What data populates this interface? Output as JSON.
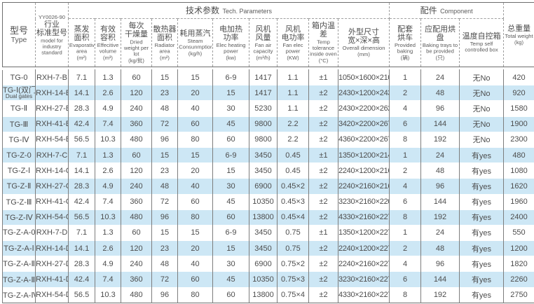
{
  "colors": {
    "row_highlight": "#cde7f5",
    "grid_border": "#6e6e6e",
    "text": "#4d4d4d"
  },
  "header": {
    "groups": {
      "tech_zh": "技术参数",
      "tech_en": "Tech. Parameters",
      "component_zh": "配件",
      "component_en": "Component"
    },
    "columns": [
      {
        "zh": "型号",
        "en": "Type"
      },
      {
        "std": "YY0026-90",
        "zh": "行业",
        "zh2": "标准型号",
        "en": "model for industry standard"
      },
      {
        "zh": "蒸发",
        "zh2": "面积",
        "en": "Evaporative area",
        "unit": "(m²)"
      },
      {
        "zh": "有效",
        "zh2": "容积",
        "en": "Effecitive volume",
        "unit": "(m³)"
      },
      {
        "zh": "每次",
        "zh2": "干燥量",
        "en": "Dried weight per lot",
        "unit": "(kg/批)"
      },
      {
        "zh": "散热器",
        "zh2": "面积",
        "en": "Radiator area",
        "unit": "(m²)"
      },
      {
        "zh": "耗用蒸汽",
        "en": "Steam Consunmption",
        "unit": "(kg/h)"
      },
      {
        "zh": "电加热",
        "zh2": "功率",
        "en": "Elec heating power",
        "unit": "(kw)"
      },
      {
        "zh": "风机",
        "zh2": "风量",
        "en": "Fan air capacity",
        "unit": "(m³/h)"
      },
      {
        "zh": "风机",
        "zh2": "电功率",
        "en": "Fan elec power",
        "unit": "(KW)"
      },
      {
        "zh": "箱内温差",
        "en": "Temp tolerance inside oven",
        "unit": "(°C)"
      },
      {
        "zh": "外型尺寸",
        "zh2": "宽×深×高",
        "en": "Overall dimension",
        "unit": "(mm)"
      },
      {
        "zh": "配套",
        "zh2": "烘车",
        "en": "Provided baking",
        "unit": "(辆)"
      },
      {
        "zh": "应配用烘盘",
        "en": "Baking trays to be provided",
        "unit": "(只)"
      },
      {
        "zh": "温度自控箱",
        "en": "Temp self controlled box",
        "unit": ""
      },
      {
        "zh": "总重量",
        "en": "Total weight",
        "unit": "(kg)"
      }
    ]
  },
  "row_keys": [
    "type",
    "model",
    "evap",
    "vol",
    "dried",
    "rad",
    "steam",
    "heat",
    "air",
    "fan",
    "tol",
    "dim",
    "cars",
    "trays",
    "box",
    "weight"
  ],
  "rows": [
    {
      "type": "TG-0",
      "type_sub": "",
      "model": "RXH-7-B",
      "evap": "7.1",
      "vol": "1.3",
      "dried": "60",
      "rad": "15",
      "steam": "15",
      "heat": "6-9",
      "air": "1417",
      "fan": "1.1",
      "tol": "±1",
      "dim": "1050×1600×2100",
      "cars": "1",
      "trays": "24",
      "box": "无No",
      "weight": "420"
    },
    {
      "type": "TG-Ⅰ(双门)",
      "type_sub": "Dual gates",
      "model": "RXH-14-B",
      "evap": "14.1",
      "vol": "2.6",
      "dried": "120",
      "rad": "23",
      "steam": "20",
      "heat": "15",
      "air": "1417",
      "fan": "1.1",
      "tol": "±2",
      "dim": "2430×1200×2430",
      "cars": "2",
      "trays": "48",
      "box": "无No",
      "weight": "920"
    },
    {
      "type": "TG-Ⅱ",
      "type_sub": "",
      "model": "RXH-27-B",
      "evap": "28.3",
      "vol": "4.9",
      "dried": "240",
      "rad": "48",
      "steam": "40",
      "heat": "30",
      "air": "5230",
      "fan": "1.1",
      "tol": "±2",
      "dim": "2430×2200×2625",
      "cars": "4",
      "trays": "96",
      "box": "无No",
      "weight": "1580"
    },
    {
      "type": "TG-Ⅲ",
      "type_sub": "",
      "model": "RXH-41-B",
      "evap": "42.4",
      "vol": "7.4",
      "dried": "360",
      "rad": "72",
      "steam": "60",
      "heat": "45",
      "air": "9800",
      "fan": "2.2",
      "tol": "±2",
      "dim": "3420×2200×2670",
      "cars": "6",
      "trays": "144",
      "box": "无No",
      "weight": "1900"
    },
    {
      "type": "TG-Ⅳ",
      "type_sub": "",
      "model": "RXH-54-B",
      "evap": "56.5",
      "vol": "10.3",
      "dried": "480",
      "rad": "96",
      "steam": "80",
      "heat": "60",
      "air": "9800",
      "fan": "2.2",
      "tol": "±2",
      "dim": "4360×2200×2670",
      "cars": "8",
      "trays": "192",
      "box": "无No",
      "weight": "2300"
    },
    {
      "type": "TG-Z-0",
      "type_sub": "",
      "model": "RXH-7-C",
      "evap": "7.1",
      "vol": "1.3",
      "dried": "60",
      "rad": "15",
      "steam": "15",
      "heat": "6-9",
      "air": "3450",
      "fan": "0.45",
      "tol": "±1",
      "dim": "1350×1200×2140",
      "cars": "1",
      "trays": "24",
      "box": "有yes",
      "weight": "480"
    },
    {
      "type": "TG-Z-Ⅰ",
      "type_sub": "",
      "model": "RXH-14-C",
      "evap": "14.1",
      "vol": "2.6",
      "dried": "120",
      "rad": "23",
      "steam": "20",
      "heat": "15",
      "air": "3450",
      "fan": "0.45",
      "tol": "±2",
      "dim": "2240×1200×2160",
      "cars": "2",
      "trays": "48",
      "box": "有yes",
      "weight": "1080"
    },
    {
      "type": "TG-Z-Ⅱ",
      "type_sub": "",
      "model": "RXH-27-C",
      "evap": "28.3",
      "vol": "4.9",
      "dried": "240",
      "rad": "48",
      "steam": "40",
      "heat": "30",
      "air": "6900",
      "fan": "0.45×2",
      "tol": "±2",
      "dim": "2240×2160×2160",
      "cars": "4",
      "trays": "96",
      "box": "有yes",
      "weight": "1620"
    },
    {
      "type": "TG-Z-Ⅲ",
      "type_sub": "",
      "model": "RXH-41-C",
      "evap": "42.4",
      "vol": "7.4",
      "dried": "360",
      "rad": "72",
      "steam": "60",
      "heat": "45",
      "air": "10350",
      "fan": "0.45×3",
      "tol": "±2",
      "dim": "3230×2160×2200",
      "cars": "6",
      "trays": "144",
      "box": "有yes",
      "weight": "1960"
    },
    {
      "type": "TG-Z-Ⅳ",
      "type_sub": "",
      "model": "RXH-54-C",
      "evap": "56.5",
      "vol": "10.3",
      "dried": "480",
      "rad": "96",
      "steam": "80",
      "heat": "60",
      "air": "13800",
      "fan": "0.45×4",
      "tol": "±2",
      "dim": "4330×2160×2270",
      "cars": "8",
      "trays": "192",
      "box": "有yes",
      "weight": "2400"
    },
    {
      "type": "TG-Z-A-0",
      "type_sub": "",
      "model": "RXH-7-D",
      "evap": "7.1",
      "vol": "1.3",
      "dried": "60",
      "rad": "15",
      "steam": "15",
      "heat": "6-9",
      "air": "3450",
      "fan": "0.75",
      "tol": "±1",
      "dim": "1350×1200×2270",
      "cars": "1",
      "trays": "24",
      "box": "有yes",
      "weight": "550"
    },
    {
      "type": "TG-Z-A-Ⅰ",
      "type_sub": "",
      "model": "RXH-14-D",
      "evap": "14.1",
      "vol": "2.6",
      "dried": "120",
      "rad": "23",
      "steam": "20",
      "heat": "15",
      "air": "3450",
      "fan": "0.75",
      "tol": "±2",
      "dim": "2240×1200×2270",
      "cars": "2",
      "trays": "48",
      "box": "有yes",
      "weight": "1200"
    },
    {
      "type": "TG-Z-A-Ⅱ",
      "type_sub": "",
      "model": "RXH-27-D",
      "evap": "28.3",
      "vol": "4.9",
      "dried": "240",
      "rad": "48",
      "steam": "40",
      "heat": "30",
      "air": "6900",
      "fan": "0.75×2",
      "tol": "±2",
      "dim": "2240×2160×2270",
      "cars": "4",
      "trays": "96",
      "box": "有yes",
      "weight": "1820"
    },
    {
      "type": "TG-Z-A-Ⅲ",
      "type_sub": "",
      "model": "RXH-41-D",
      "evap": "42.4",
      "vol": "7.4",
      "dried": "360",
      "rad": "72",
      "steam": "60",
      "heat": "45",
      "air": "10350",
      "fan": "0.75×3",
      "tol": "±2",
      "dim": "3230×2160×2270",
      "cars": "6",
      "trays": "144",
      "box": "有yes",
      "weight": "2260"
    },
    {
      "type": "TG-Z-A-Ⅳ",
      "type_sub": "",
      "model": "RXH-54-D",
      "evap": "56.5",
      "vol": "10.3",
      "dried": "480",
      "rad": "96",
      "steam": "80",
      "heat": "60",
      "air": "13800",
      "fan": "0.75×4",
      "tol": "±2",
      "dim": "4330×2160×2270",
      "cars": "8",
      "trays": "192",
      "box": "有yes",
      "weight": "2750"
    }
  ]
}
